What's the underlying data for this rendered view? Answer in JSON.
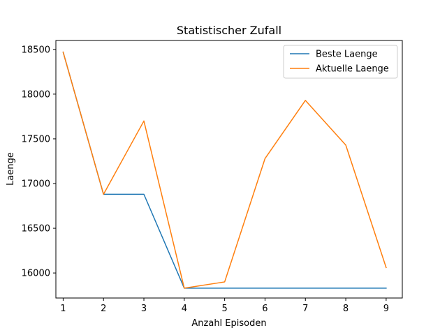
{
  "chart_data": {
    "type": "line",
    "title": "Statistischer Zufall",
    "xlabel": "Anzahl Episoden",
    "ylabel": "Laenge",
    "x": [
      1,
      2,
      3,
      4,
      5,
      6,
      7,
      8,
      9
    ],
    "xlim": [
      0.82,
      9.4
    ],
    "ylim": [
      15720,
      18600
    ],
    "xticks": [
      1,
      2,
      3,
      4,
      5,
      6,
      7,
      8,
      9
    ],
    "yticks": [
      16000,
      16500,
      17000,
      17500,
      18000,
      18500
    ],
    "grid": false,
    "legend_position": "top-right",
    "series": [
      {
        "name": "Beste Laenge",
        "color": "#1f77b4",
        "values": [
          18470,
          16880,
          16880,
          15830,
          15830,
          15830,
          15830,
          15830,
          15830
        ]
      },
      {
        "name": "Aktuelle Laenge",
        "color": "#ff7f0e",
        "values": [
          18470,
          16880,
          17700,
          15830,
          15900,
          17280,
          17930,
          17430,
          16060
        ]
      }
    ]
  }
}
